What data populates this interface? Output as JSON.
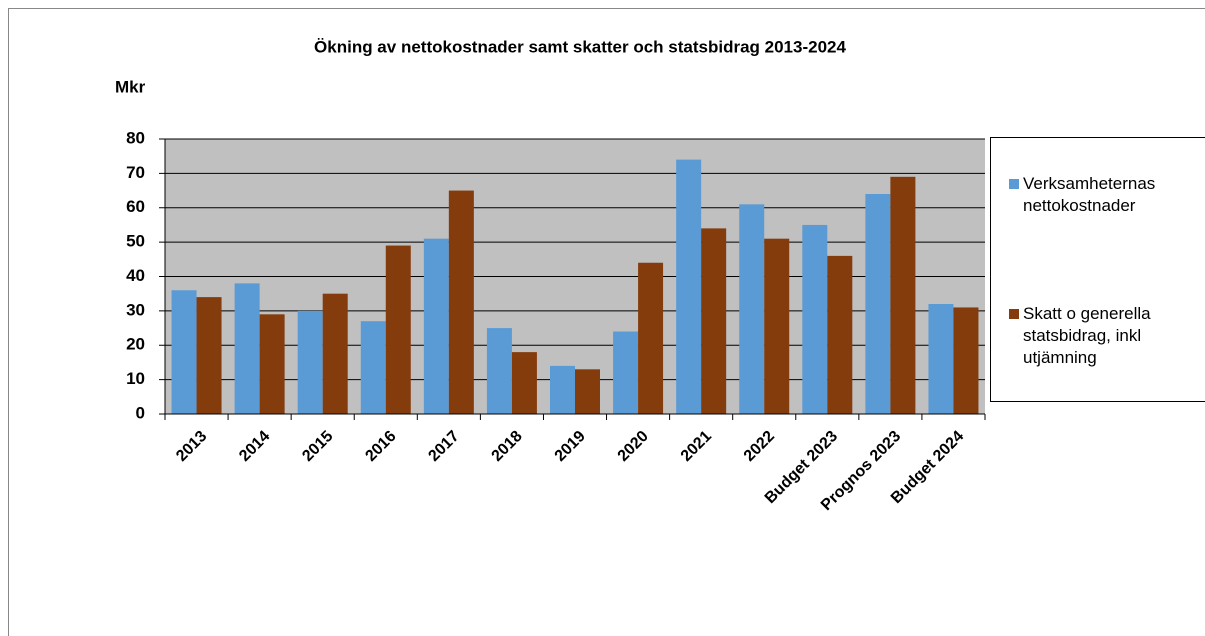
{
  "chart_data": {
    "type": "bar",
    "title": "Ökning av nettokostnader samt skatter och statsbidrag 2013-2024",
    "y_label": "Mkr",
    "categories": [
      "2013",
      "2014",
      "2015",
      "2016",
      "2017",
      "2018",
      "2019",
      "2020",
      "2021",
      "2022",
      "Budget 2023",
      "Prognos 2023",
      "Budget 2024"
    ],
    "series": [
      {
        "name": "Verksamheternas nettokostnader",
        "color": "#5b9bd5",
        "values": [
          36,
          38,
          30,
          27,
          51,
          25,
          14,
          24,
          74,
          61,
          55,
          64,
          32
        ]
      },
      {
        "name": "Skatt o generella statsbidrag, inkl utjämning",
        "color": "#843c0c",
        "values": [
          34,
          29,
          35,
          49,
          65,
          18,
          13,
          44,
          54,
          51,
          46,
          69,
          31
        ]
      }
    ],
    "ylim": [
      0,
      80
    ],
    "yticks": [
      0,
      10,
      20,
      30,
      40,
      50,
      60,
      70,
      80
    ],
    "grid": true,
    "legend": "right"
  }
}
